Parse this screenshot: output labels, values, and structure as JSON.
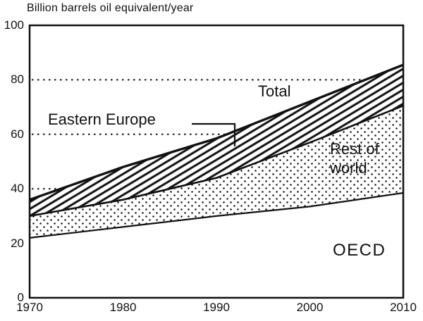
{
  "page": {
    "background": "#ffffff",
    "ink": "#111111"
  },
  "chart_data": {
    "type": "area",
    "title": "Billion barrels oil equivalent/year",
    "x": [
      1970,
      1980,
      1990,
      2000,
      2010
    ],
    "x_tick_labels": [
      "1970",
      "1980",
      "1990",
      "2000",
      "2010"
    ],
    "y_ticks": [
      0,
      20,
      40,
      60,
      80,
      100
    ],
    "xlim": [
      1970,
      2010
    ],
    "ylim": [
      0,
      100
    ],
    "gridlines_dotted": [
      40,
      60,
      80
    ],
    "grid": "dotted horizontal lines at 40, 60, 80 drawn behind the area bands",
    "legend": "none (direct labels on bands; leader line for Eastern Europe)",
    "series": [
      {
        "name": "OECD",
        "boundary": "top of OECD band",
        "fill": "white",
        "values": [
          22,
          26,
          30,
          33.5,
          38.5
        ]
      },
      {
        "name": "Rest of world",
        "boundary": "top of Rest-of-world band",
        "fill": "stipple-dots",
        "values": [
          30,
          36,
          44,
          57,
          70.5
        ]
      },
      {
        "name": "Eastern Europe",
        "boundary": "top of Eastern-Europe band (= Total)",
        "fill": "diagonal-hatch",
        "values": [
          36,
          48,
          58.5,
          72,
          85.5
        ]
      }
    ],
    "annotations": {
      "total": "Total",
      "eastern_europe": "Eastern Europe",
      "rest_of_world_line1": "Rest of",
      "rest_of_world_line2": "world",
      "oecd": "OECD"
    }
  }
}
